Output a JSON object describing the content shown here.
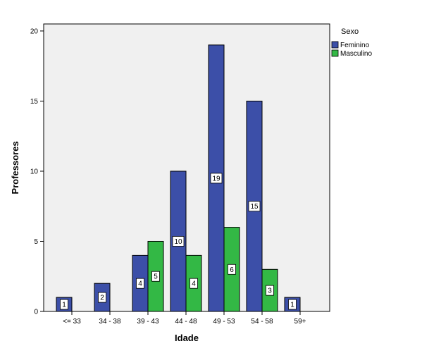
{
  "chart_data": {
    "type": "bar",
    "title": "",
    "xlabel": "Idade",
    "ylabel": "Professores",
    "categories": [
      "<= 33",
      "34 - 38",
      "39 - 43",
      "44 - 48",
      "49 - 53",
      "54 - 58",
      "59+"
    ],
    "series": [
      {
        "name": "Feminino",
        "values": [
          1,
          2,
          4,
          10,
          19,
          15,
          1
        ],
        "color": "#3C4FA8"
      },
      {
        "name": "Masculino",
        "values": [
          0,
          0,
          5,
          4,
          6,
          3,
          0
        ],
        "color": "#33B845"
      }
    ],
    "ylim": [
      0,
      20.5
    ],
    "yticks": [
      0,
      5,
      10,
      15,
      20
    ],
    "legend": {
      "title": "Sexo",
      "position": "top-right"
    },
    "grid": false,
    "data_labels": true,
    "plot_background": "#F0F0F0"
  }
}
